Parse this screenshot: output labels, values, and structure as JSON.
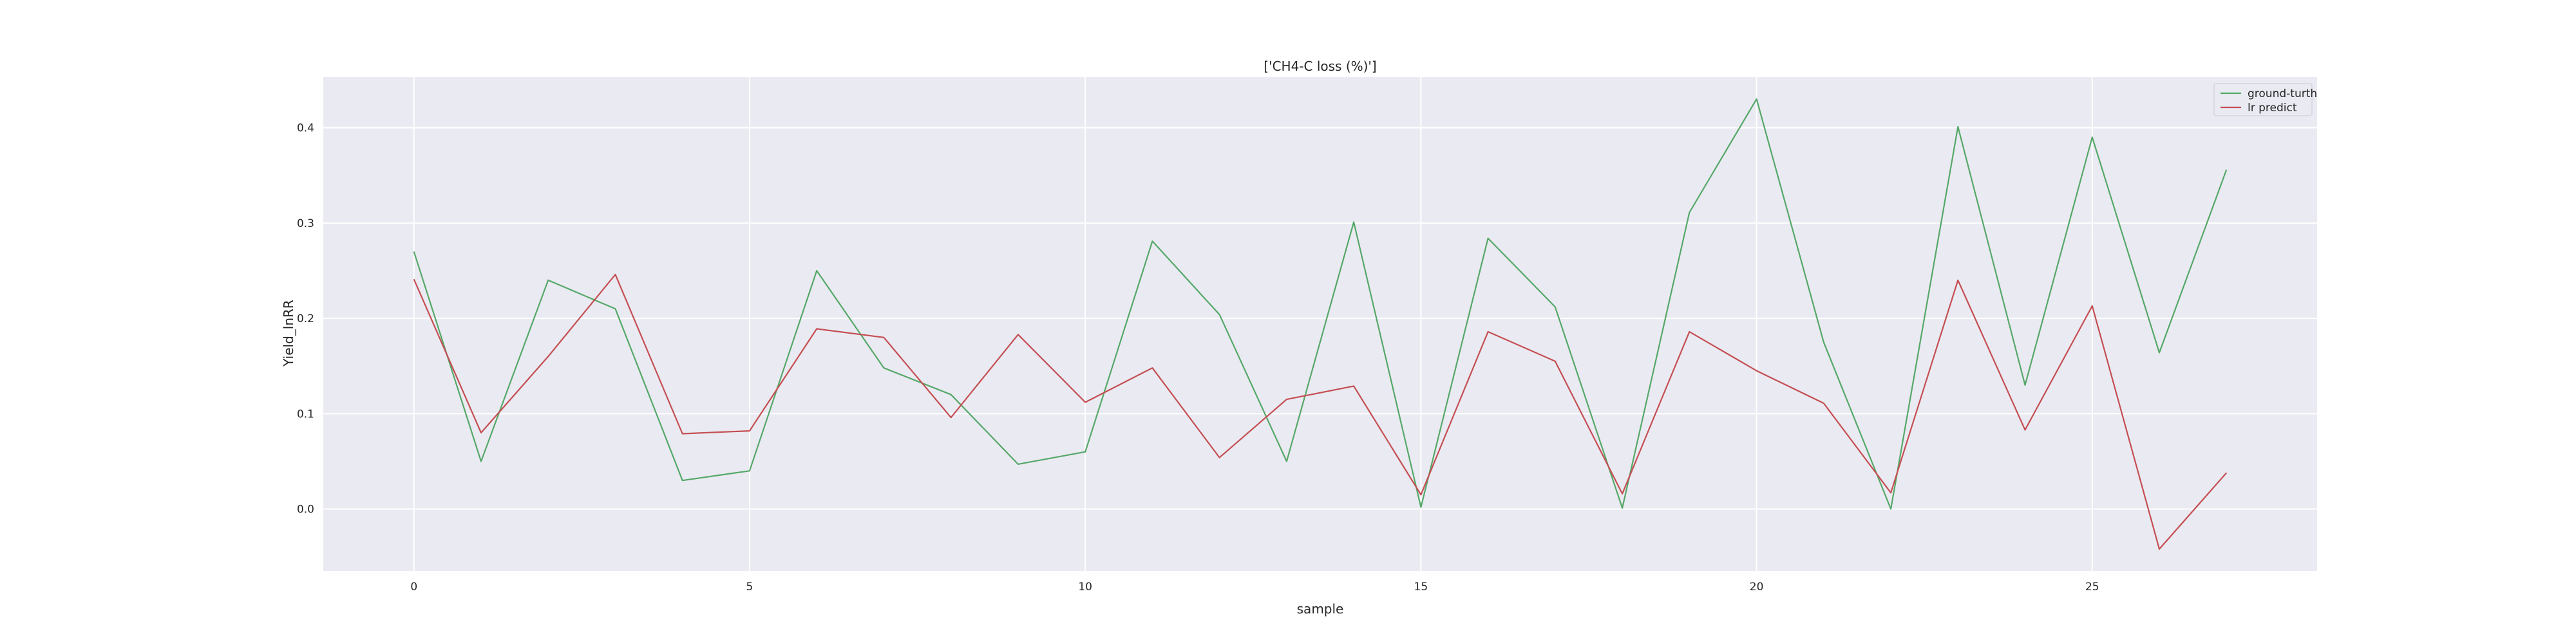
{
  "chart_data": {
    "type": "line",
    "title": "['CH4-C loss (%)']",
    "xlabel": "sample",
    "ylabel": "Yield_lnRR",
    "x": [
      0,
      1,
      2,
      3,
      4,
      5,
      6,
      7,
      8,
      9,
      10,
      11,
      12,
      13,
      14,
      15,
      16,
      17,
      18,
      19,
      20,
      21,
      22,
      23,
      24,
      25,
      26,
      27
    ],
    "series": [
      {
        "name": "ground-turth",
        "color": "#55a868",
        "values": [
          0.27,
          0.05,
          0.24,
          0.21,
          0.03,
          0.04,
          0.25,
          0.148,
          0.12,
          0.047,
          0.06,
          0.281,
          0.204,
          0.05,
          0.301,
          0.002,
          0.284,
          0.212,
          0.001,
          0.311,
          0.43,
          0.175,
          0.0,
          0.401,
          0.13,
          0.39,
          0.164,
          0.356
        ]
      },
      {
        "name": "lr predict",
        "color": "#c44e52",
        "values": [
          0.241,
          0.08,
          0.16,
          0.246,
          0.079,
          0.082,
          0.189,
          0.18,
          0.096,
          0.183,
          0.112,
          0.148,
          0.054,
          0.115,
          0.129,
          0.015,
          0.186,
          0.155,
          0.016,
          0.186,
          0.145,
          0.111,
          0.017,
          0.24,
          0.083,
          0.213,
          -0.042,
          0.038
        ]
      }
    ],
    "xlim": [
      -1.35,
      28.35
    ],
    "ylim": [
      -0.065,
      0.453
    ],
    "xticks": [
      0,
      5,
      10,
      15,
      20,
      25
    ],
    "xtick_labels": [
      "0",
      "5",
      "10",
      "15",
      "20",
      "25"
    ],
    "yticks": [
      0.0,
      0.1,
      0.2,
      0.3,
      0.4
    ],
    "ytick_labels": [
      "0.0",
      "0.1",
      "0.2",
      "0.3",
      "0.4"
    ],
    "grid": true,
    "legend": "upper right",
    "background_color": "#eaeaf2"
  }
}
